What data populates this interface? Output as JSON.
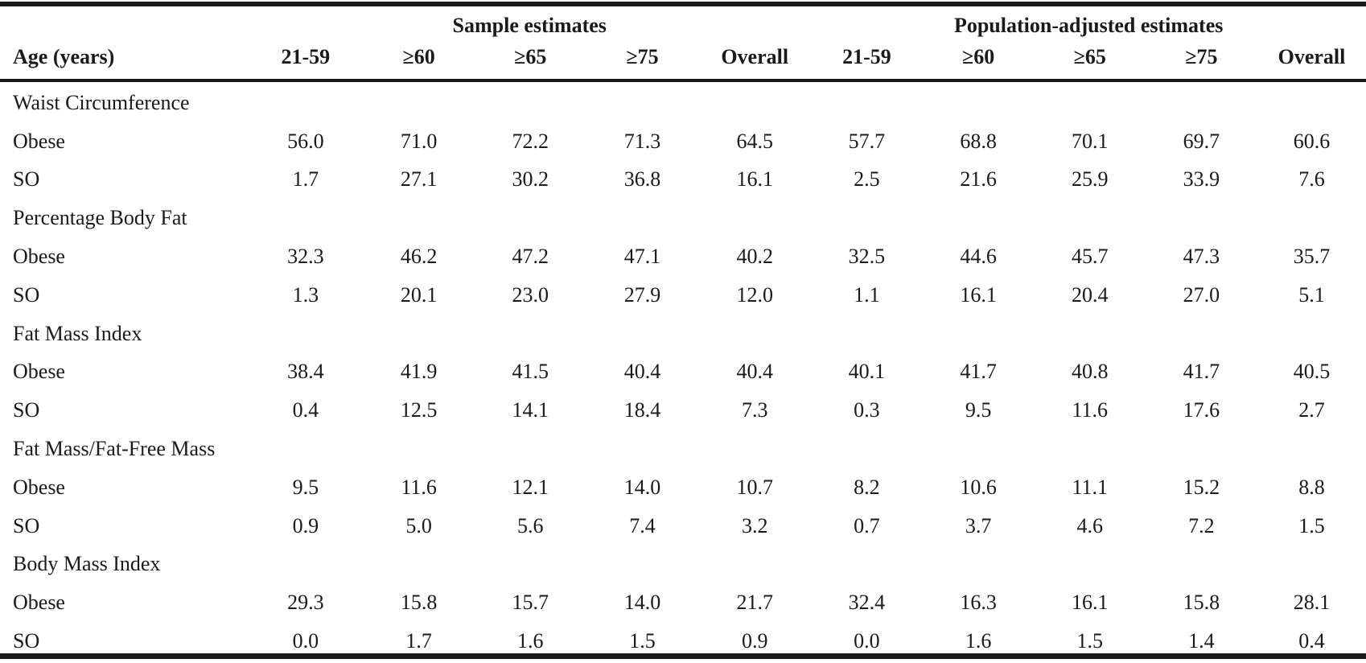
{
  "table": {
    "group_headers": {
      "sample": "Sample estimates",
      "population": "Population-adjusted estimates"
    },
    "columns": [
      "Age (years)",
      "21-59",
      "≥60",
      "≥65",
      "≥75",
      "Overall",
      "21-59",
      "≥60",
      "≥65",
      "≥75",
      "Overall"
    ],
    "sections": [
      {
        "title": "Waist Circumference",
        "rows": [
          {
            "label": "Obese",
            "values": [
              "56.0",
              "71.0",
              "72.2",
              "71.3",
              "64.5",
              "57.7",
              "68.8",
              "70.1",
              "69.7",
              "60.6"
            ]
          },
          {
            "label": "SO",
            "values": [
              "1.7",
              "27.1",
              "30.2",
              "36.8",
              "16.1",
              "2.5",
              "21.6",
              "25.9",
              "33.9",
              "7.6"
            ]
          }
        ]
      },
      {
        "title": "Percentage Body Fat",
        "rows": [
          {
            "label": "Obese",
            "values": [
              "32.3",
              "46.2",
              "47.2",
              "47.1",
              "40.2",
              "32.5",
              "44.6",
              "45.7",
              "47.3",
              "35.7"
            ]
          },
          {
            "label": "SO",
            "values": [
              "1.3",
              "20.1",
              "23.0",
              "27.9",
              "12.0",
              "1.1",
              "16.1",
              "20.4",
              "27.0",
              "5.1"
            ]
          }
        ]
      },
      {
        "title": "Fat Mass Index",
        "rows": [
          {
            "label": "Obese",
            "values": [
              "38.4",
              "41.9",
              "41.5",
              "40.4",
              "40.4",
              "40.1",
              "41.7",
              "40.8",
              "41.7",
              "40.5"
            ]
          },
          {
            "label": "SO",
            "values": [
              "0.4",
              "12.5",
              "14.1",
              "18.4",
              "7.3",
              "0.3",
              "9.5",
              "11.6",
              "17.6",
              "2.7"
            ]
          }
        ]
      },
      {
        "title": "Fat Mass/Fat-Free Mass",
        "rows": [
          {
            "label": "Obese",
            "values": [
              "9.5",
              "11.6",
              "12.1",
              "14.0",
              "10.7",
              "8.2",
              "10.6",
              "11.1",
              "15.2",
              "8.8"
            ]
          },
          {
            "label": "SO",
            "values": [
              "0.9",
              "5.0",
              "5.6",
              "7.4",
              "3.2",
              "0.7",
              "3.7",
              "4.6",
              "7.2",
              "1.5"
            ]
          }
        ]
      },
      {
        "title": "Body Mass Index",
        "rows": [
          {
            "label": "Obese",
            "values": [
              "29.3",
              "15.8",
              "15.7",
              "14.0",
              "21.7",
              "32.4",
              "16.3",
              "16.1",
              "15.8",
              "28.1"
            ]
          },
          {
            "label": "SO",
            "values": [
              "0.0",
              "1.7",
              "1.6",
              "1.5",
              "0.9",
              "0.0",
              "1.6",
              "1.5",
              "1.4",
              "0.4"
            ]
          }
        ]
      }
    ]
  }
}
